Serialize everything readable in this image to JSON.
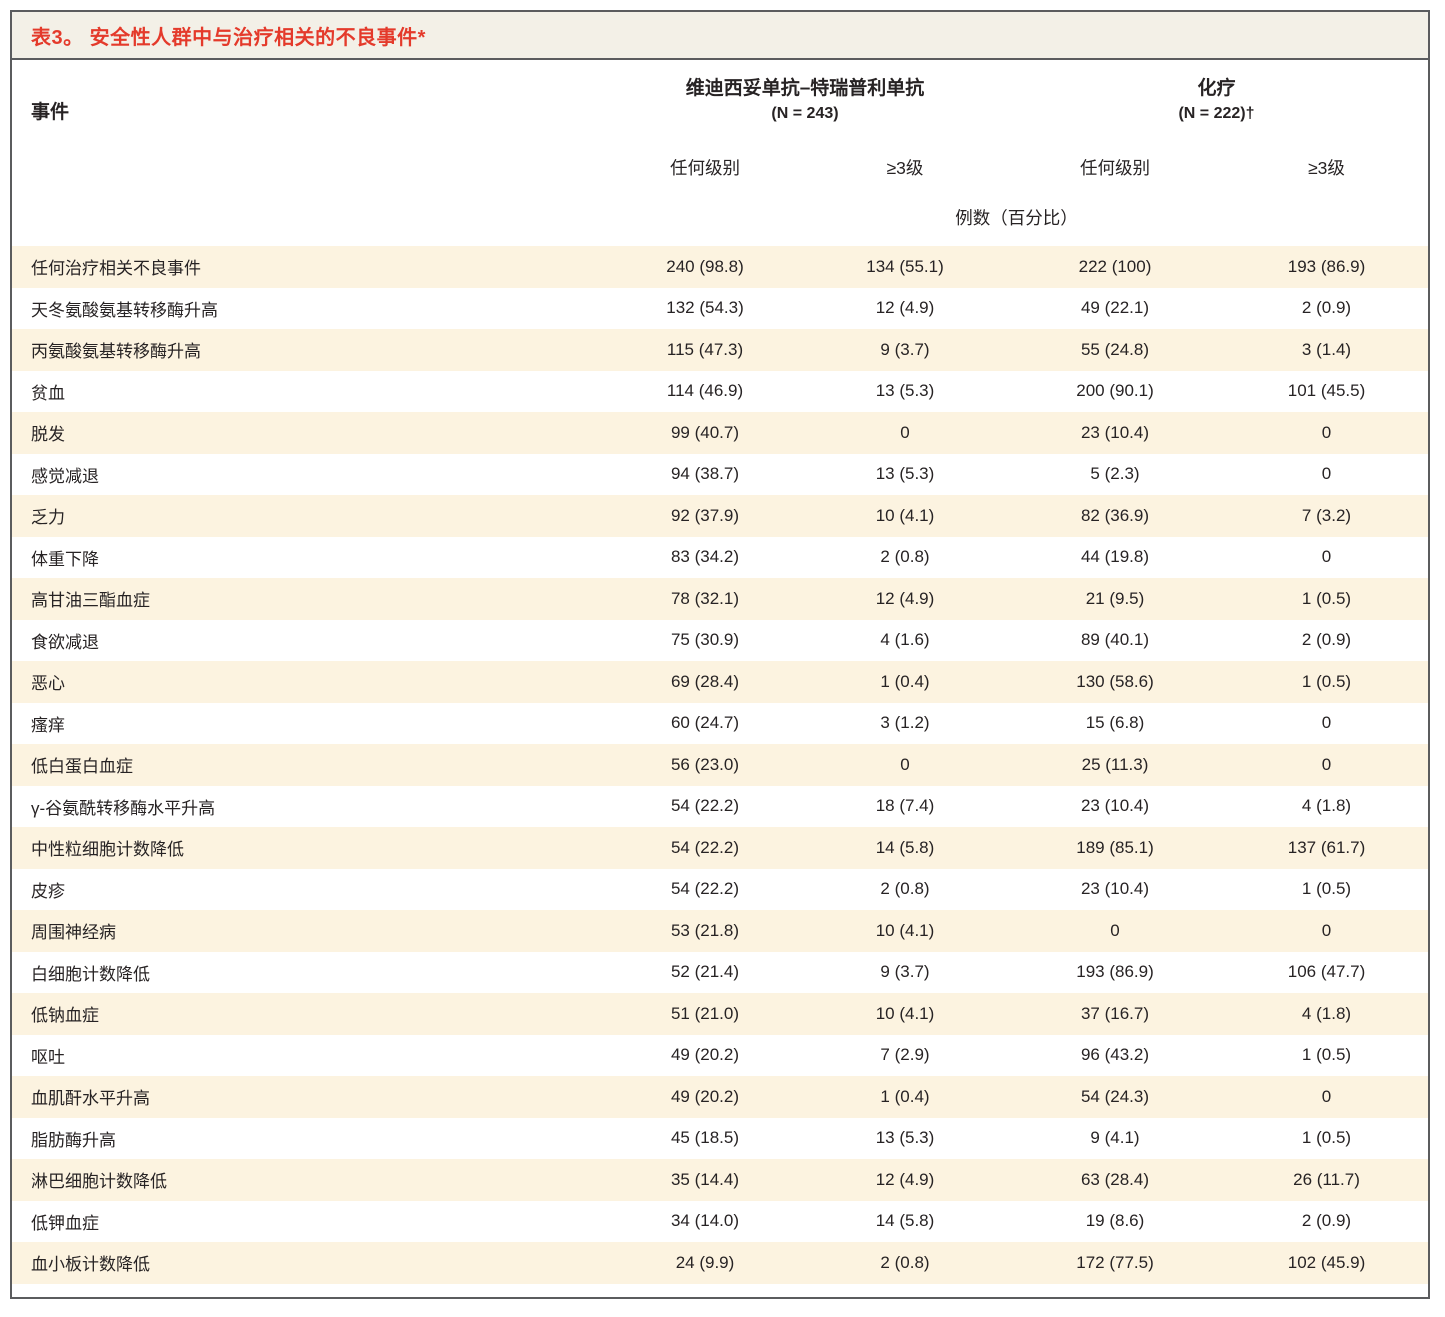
{
  "table": {
    "title": "表3。 安全性人群中与治疗相关的不良事件*",
    "header": {
      "event_label": "事件",
      "groups": [
        {
          "name": "维迪西妥单抗–特瑞普利单抗",
          "n": "(N = 243)"
        },
        {
          "name": "化疗",
          "n": "(N = 222)†"
        }
      ],
      "subcolumns": [
        "任何级别",
        "≥3级",
        "任何级别",
        "≥3级"
      ],
      "units_label": "例数（百分比）"
    },
    "colors": {
      "accent_red": "#e43a2b",
      "row_stripe": "#fcf3e0",
      "title_bar_bg": "#f3f0e7",
      "border_gray": "#5b5c5e",
      "text": "#272324"
    },
    "rows": [
      {
        "event": "任何治疗相关不良事件",
        "values": [
          "240 (98.8)",
          "134 (55.1)",
          "222 (100)",
          "193 (86.9)"
        ]
      },
      {
        "event": "天冬氨酸氨基转移酶升高",
        "values": [
          "132 (54.3)",
          "12 (4.9)",
          "49 (22.1)",
          "2 (0.9)"
        ]
      },
      {
        "event": "丙氨酸氨基转移酶升高",
        "values": [
          "115 (47.3)",
          "9 (3.7)",
          "55 (24.8)",
          "3 (1.4)"
        ]
      },
      {
        "event": "贫血",
        "values": [
          "114 (46.9)",
          "13 (5.3)",
          "200 (90.1)",
          "101 (45.5)"
        ]
      },
      {
        "event": "脱发",
        "values": [
          "99 (40.7)",
          "0",
          "23 (10.4)",
          "0"
        ]
      },
      {
        "event": "感觉减退",
        "values": [
          "94 (38.7)",
          "13 (5.3)",
          "5 (2.3)",
          "0"
        ]
      },
      {
        "event": "乏力",
        "values": [
          "92 (37.9)",
          "10 (4.1)",
          "82 (36.9)",
          "7 (3.2)"
        ]
      },
      {
        "event": "体重下降",
        "values": [
          "83 (34.2)",
          "2 (0.8)",
          "44 (19.8)",
          "0"
        ]
      },
      {
        "event": "高甘油三酯血症",
        "values": [
          "78 (32.1)",
          "12 (4.9)",
          "21 (9.5)",
          "1 (0.5)"
        ]
      },
      {
        "event": "食欲减退",
        "values": [
          "75 (30.9)",
          "4 (1.6)",
          "89 (40.1)",
          "2 (0.9)"
        ]
      },
      {
        "event": "恶心",
        "values": [
          "69 (28.4)",
          "1 (0.4)",
          "130 (58.6)",
          "1 (0.5)"
        ]
      },
      {
        "event": "瘙痒",
        "values": [
          "60 (24.7)",
          "3 (1.2)",
          "15 (6.8)",
          "0"
        ]
      },
      {
        "event": "低白蛋白血症",
        "values": [
          "56 (23.0)",
          "0",
          "25 (11.3)",
          "0"
        ]
      },
      {
        "event": "γ-谷氨酰转移酶水平升高",
        "values": [
          "54 (22.2)",
          "18 (7.4)",
          "23 (10.4)",
          "4 (1.8)"
        ]
      },
      {
        "event": "中性粒细胞计数降低",
        "values": [
          "54 (22.2)",
          "14 (5.8)",
          "189 (85.1)",
          "137 (61.7)"
        ]
      },
      {
        "event": "皮疹",
        "values": [
          "54 (22.2)",
          "2 (0.8)",
          "23 (10.4)",
          "1 (0.5)"
        ]
      },
      {
        "event": "周围神经病",
        "values": [
          "53 (21.8)",
          "10 (4.1)",
          "0",
          "0"
        ]
      },
      {
        "event": "白细胞计数降低",
        "values": [
          "52 (21.4)",
          "9 (3.7)",
          "193 (86.9)",
          "106 (47.7)"
        ]
      },
      {
        "event": "低钠血症",
        "values": [
          "51 (21.0)",
          "10 (4.1)",
          "37 (16.7)",
          "4 (1.8)"
        ]
      },
      {
        "event": "呕吐",
        "values": [
          "49 (20.2)",
          "7 (2.9)",
          "96 (43.2)",
          "1 (0.5)"
        ]
      },
      {
        "event": "血肌酐水平升高",
        "values": [
          "49 (20.2)",
          "1 (0.4)",
          "54 (24.3)",
          "0"
        ]
      },
      {
        "event": "脂肪酶升高",
        "values": [
          "45 (18.5)",
          "13 (5.3)",
          "9 (4.1)",
          "1 (0.5)"
        ]
      },
      {
        "event": "淋巴细胞计数降低",
        "values": [
          "35 (14.4)",
          "12 (4.9)",
          "63 (28.4)",
          "26 (11.7)"
        ]
      },
      {
        "event": "低钾血症",
        "values": [
          "34 (14.0)",
          "14 (5.8)",
          "19 (8.6)",
          "2 (0.9)"
        ]
      },
      {
        "event": "血小板计数降低",
        "values": [
          "24 (9.9)",
          "2 (0.8)",
          "172 (77.5)",
          "102 (45.9)"
        ]
      }
    ]
  }
}
